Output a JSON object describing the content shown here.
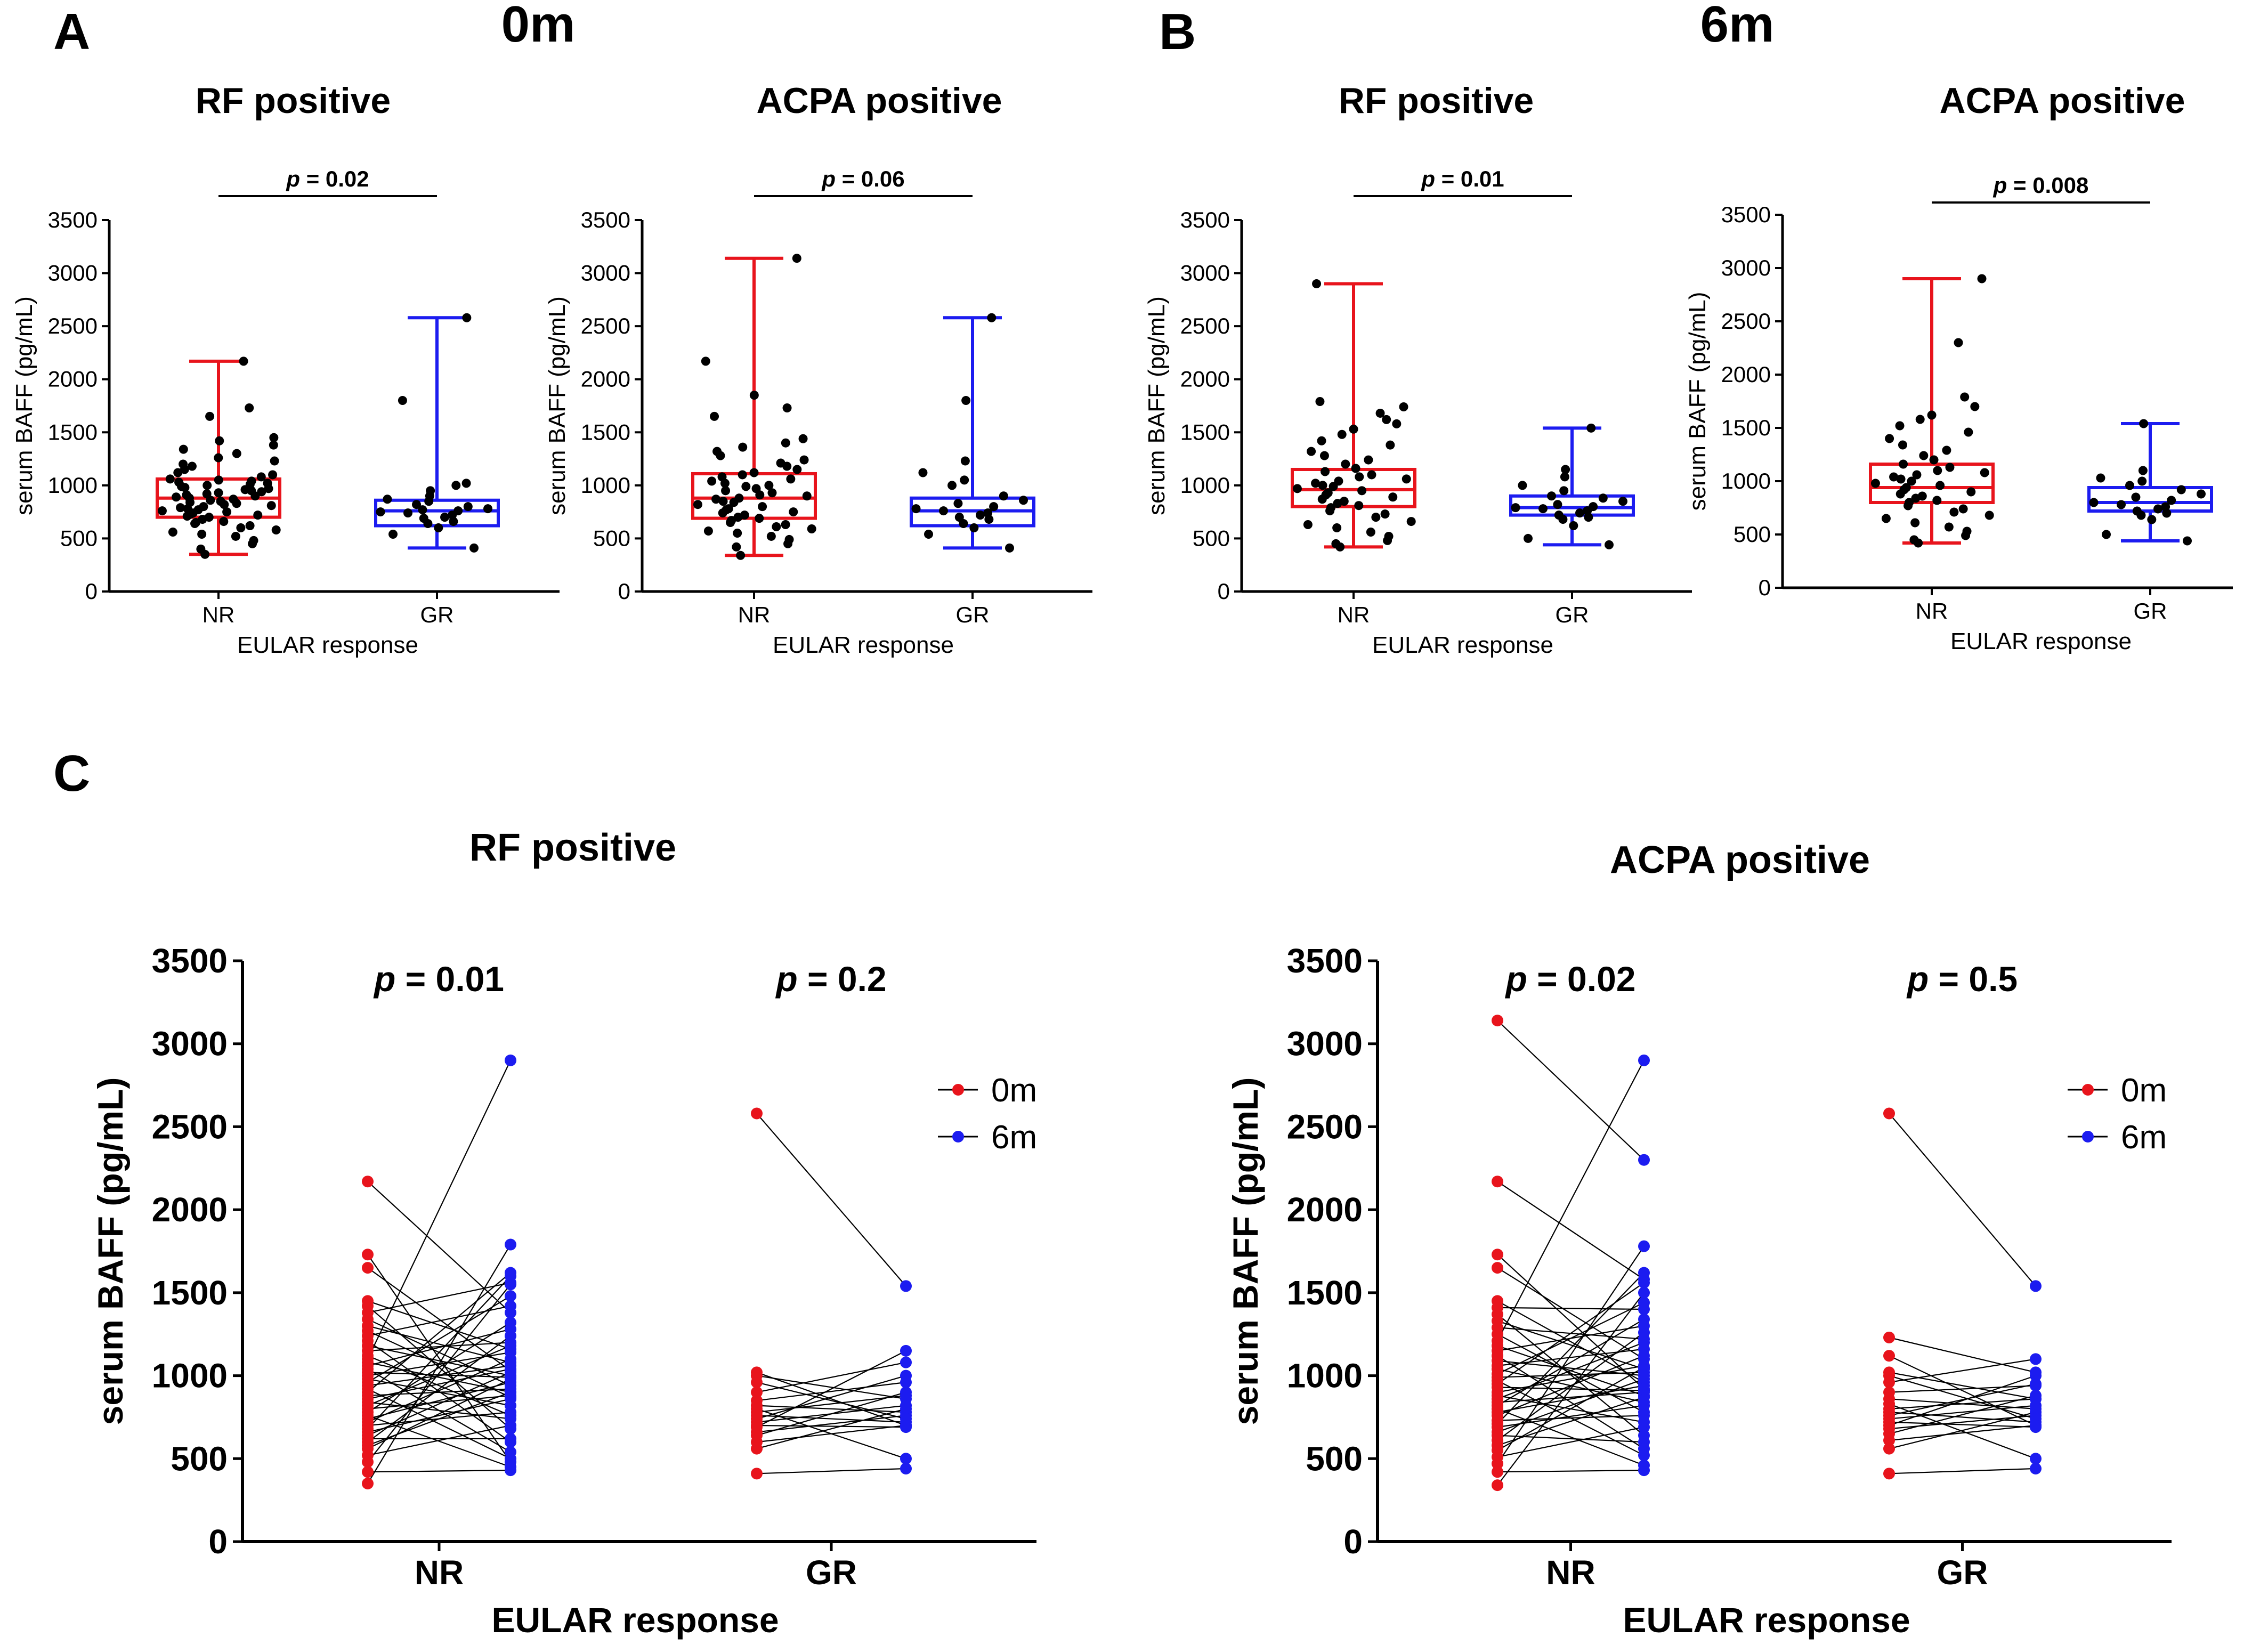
{
  "figure": {
    "panel_letters": [
      "A",
      "B",
      "C"
    ],
    "timepoint_titles": [
      "0m",
      "6m"
    ]
  },
  "chart_data": [
    {
      "id": "A-RF",
      "panel": "A",
      "timepoint": "0m",
      "type": "box",
      "title": "RF positive",
      "xlabel": "EULAR response",
      "ylabel": "serum BAFF (pg/mL)",
      "ylim": [
        0,
        3500
      ],
      "yticks": [
        0,
        500,
        1000,
        1500,
        2000,
        2500,
        3000,
        3500
      ],
      "pvalue": "= 0.02",
      "groups": [
        {
          "name": "NR",
          "color": "#e8141c",
          "min": 350,
          "q1": 700,
          "median": 880,
          "q3": 1060,
          "max": 2170,
          "points": [
            350,
            400,
            450,
            480,
            520,
            540,
            560,
            580,
            600,
            620,
            640,
            650,
            660,
            680,
            700,
            710,
            720,
            730,
            740,
            750,
            760,
            770,
            780,
            790,
            800,
            810,
            820,
            830,
            840,
            850,
            860,
            870,
            880,
            890,
            900,
            910,
            920,
            930,
            940,
            950,
            960,
            970,
            980,
            990,
            1000,
            1010,
            1020,
            1030,
            1040,
            1050,
            1060,
            1080,
            1100,
            1120,
            1150,
            1180,
            1200,
            1230,
            1260,
            1300,
            1340,
            1380,
            1420,
            1450,
            1650,
            1730,
            2170
          ]
        },
        {
          "name": "GR",
          "color": "#1c1cf0",
          "min": 410,
          "q1": 620,
          "median": 760,
          "q3": 860,
          "max": 2580,
          "points": [
            410,
            540,
            600,
            640,
            660,
            690,
            700,
            720,
            740,
            750,
            760,
            770,
            780,
            800,
            820,
            850,
            870,
            900,
            950,
            1000,
            1020,
            1800,
            2580
          ]
        }
      ]
    },
    {
      "id": "A-ACPA",
      "panel": "A",
      "timepoint": "0m",
      "type": "box",
      "title": "ACPA positive",
      "xlabel": "EULAR response",
      "ylabel": "serum BAFF (pg/mL)",
      "ylim": [
        0,
        3500
      ],
      "yticks": [
        0,
        500,
        1000,
        1500,
        2000,
        2500,
        3000,
        3500
      ],
      "pvalue": "= 0.06",
      "groups": [
        {
          "name": "NR",
          "color": "#e8141c",
          "min": 340,
          "q1": 690,
          "median": 880,
          "q3": 1110,
          "max": 3140,
          "points": [
            340,
            420,
            450,
            490,
            520,
            550,
            570,
            590,
            610,
            630,
            650,
            670,
            690,
            700,
            720,
            740,
            750,
            770,
            780,
            800,
            820,
            840,
            850,
            870,
            880,
            900,
            910,
            930,
            950,
            970,
            990,
            1000,
            1020,
            1040,
            1060,
            1080,
            1100,
            1120,
            1150,
            1180,
            1210,
            1240,
            1280,
            1320,
            1360,
            1400,
            1440,
            1650,
            1730,
            1850,
            2170,
            3140
          ]
        },
        {
          "name": "GR",
          "color": "#1c1cf0",
          "min": 410,
          "q1": 620,
          "median": 760,
          "q3": 880,
          "max": 2580,
          "points": [
            410,
            540,
            600,
            640,
            680,
            700,
            720,
            740,
            760,
            780,
            800,
            830,
            860,
            900,
            1000,
            1050,
            1120,
            1230,
            1800,
            2580
          ]
        }
      ]
    },
    {
      "id": "B-RF",
      "panel": "B",
      "timepoint": "6m",
      "type": "box",
      "title": "RF positive",
      "xlabel": "EULAR response",
      "ylabel": "serum BAFF (pg/mL)",
      "ylim": [
        0,
        3500
      ],
      "yticks": [
        0,
        500,
        1000,
        1500,
        2000,
        2500,
        3000,
        3500
      ],
      "pvalue": "= 0.01",
      "groups": [
        {
          "name": "NR",
          "color": "#e8141c",
          "min": 420,
          "q1": 800,
          "median": 960,
          "q3": 1150,
          "max": 2900,
          "points": [
            420,
            450,
            480,
            520,
            560,
            600,
            630,
            660,
            700,
            730,
            760,
            790,
            810,
            830,
            850,
            870,
            890,
            910,
            930,
            950,
            970,
            990,
            1000,
            1020,
            1040,
            1060,
            1080,
            1100,
            1130,
            1160,
            1200,
            1240,
            1280,
            1320,
            1380,
            1420,
            1480,
            1530,
            1580,
            1620,
            1680,
            1740,
            1790,
            2900
          ]
        },
        {
          "name": "GR",
          "color": "#1c1cf0",
          "min": 440,
          "q1": 720,
          "median": 790,
          "q3": 900,
          "max": 1540,
          "points": [
            440,
            500,
            620,
            680,
            700,
            720,
            740,
            760,
            780,
            790,
            800,
            820,
            850,
            880,
            900,
            950,
            1000,
            1080,
            1150,
            1540
          ]
        }
      ]
    },
    {
      "id": "B-ACPA",
      "panel": "B",
      "timepoint": "6m",
      "type": "box",
      "title": "ACPA positive",
      "xlabel": "EULAR response",
      "ylabel": "serum BAFF (pg/mL)",
      "ylim": [
        0,
        3500
      ],
      "yticks": [
        0,
        500,
        1000,
        1500,
        2000,
        2500,
        3000,
        3500
      ],
      "pvalue": "= 0.008",
      "groups": [
        {
          "name": "NR",
          "color": "#e8141c",
          "min": 420,
          "q1": 800,
          "median": 940,
          "q3": 1160,
          "max": 2900,
          "points": [
            420,
            450,
            490,
            530,
            570,
            610,
            650,
            680,
            710,
            740,
            770,
            800,
            820,
            840,
            860,
            880,
            900,
            920,
            940,
            960,
            980,
            1000,
            1020,
            1040,
            1060,
            1080,
            1100,
            1130,
            1160,
            1200,
            1240,
            1290,
            1340,
            1400,
            1460,
            1520,
            1580,
            1620,
            1700,
            1790,
            2300,
            2900
          ]
        },
        {
          "name": "GR",
          "color": "#1c1cf0",
          "min": 440,
          "q1": 720,
          "median": 800,
          "q3": 940,
          "max": 1540,
          "points": [
            440,
            500,
            640,
            680,
            700,
            720,
            740,
            760,
            780,
            800,
            820,
            850,
            880,
            920,
            960,
            1000,
            1030,
            1100,
            1540
          ]
        }
      ]
    },
    {
      "id": "C-RF",
      "panel": "C",
      "type": "paired-line",
      "title": "RF positive",
      "xlabel": "EULAR response",
      "ylabel": "serum BAFF (pg/mL)",
      "ylim": [
        0,
        3500
      ],
      "yticks": [
        0,
        500,
        1000,
        1500,
        2000,
        2500,
        3000,
        3500
      ],
      "categories": [
        "NR",
        "GR"
      ],
      "legend": [
        {
          "label": "0m",
          "color": "#e8141c"
        },
        {
          "label": "6m",
          "color": "#1c1cf0"
        }
      ],
      "groups": [
        {
          "name": "NR",
          "pvalue": "= 0.01",
          "m0": [
            350,
            420,
            480,
            520,
            560,
            580,
            600,
            620,
            640,
            660,
            680,
            700,
            720,
            740,
            760,
            780,
            800,
            820,
            840,
            860,
            880,
            900,
            920,
            940,
            960,
            980,
            1000,
            1020,
            1040,
            1060,
            1080,
            1100,
            1120,
            1150,
            1180,
            1210,
            1240,
            1270,
            1300,
            1340,
            1380,
            1420,
            1450,
            1650,
            1730,
            2170
          ],
          "m6": [
            1790,
            430,
            1550,
            700,
            980,
            900,
            1240,
            620,
            1020,
            860,
            1600,
            780,
            1100,
            960,
            450,
            1320,
            880,
            1180,
            740,
            1040,
            920,
            1620,
            500,
            1060,
            1480,
            820,
            1140,
            990,
            540,
            1280,
            900,
            2900,
            760,
            1200,
            1000,
            600,
            1420,
            870,
            1080,
            940,
            1560,
            680,
            1160,
            1030,
            480,
            1380
          ]
        },
        {
          "name": "GR",
          "pvalue": "= 0.2",
          "m0": [
            410,
            560,
            600,
            640,
            660,
            690,
            700,
            720,
            740,
            760,
            780,
            800,
            820,
            850,
            900,
            960,
            1000,
            1020,
            2580
          ],
          "m6": [
            440,
            800,
            700,
            900,
            760,
            1150,
            690,
            820,
            1000,
            720,
            880,
            500,
            780,
            960,
            1080,
            740,
            860,
            700,
            1540
          ]
        }
      ]
    },
    {
      "id": "C-ACPA",
      "panel": "C",
      "type": "paired-line",
      "title": "ACPA positive",
      "xlabel": "EULAR response",
      "ylabel": "serum BAFF (pg/mL)",
      "ylim": [
        0,
        3500
      ],
      "yticks": [
        0,
        500,
        1000,
        1500,
        2000,
        2500,
        3000,
        3500
      ],
      "categories": [
        "NR",
        "GR"
      ],
      "legend": [
        {
          "label": "0m",
          "color": "#e8141c"
        },
        {
          "label": "6m",
          "color": "#1c1cf0"
        }
      ],
      "groups": [
        {
          "name": "NR",
          "pvalue": "= 0.02",
          "m0": [
            340,
            420,
            470,
            510,
            550,
            580,
            610,
            640,
            660,
            690,
            710,
            730,
            760,
            780,
            800,
            820,
            840,
            860,
            880,
            900,
            930,
            950,
            970,
            990,
            1010,
            1040,
            1060,
            1090,
            1120,
            1150,
            1180,
            1210,
            1250,
            1290,
            1330,
            1370,
            1410,
            1450,
            1650,
            1730,
            2170,
            3140
          ],
          "m6": [
            1500,
            430,
            1780,
            690,
            1050,
            870,
            1260,
            600,
            980,
            820,
            1620,
            760,
            1120,
            940,
            460,
            1340,
            900,
            1200,
            720,
            1060,
            910,
            1560,
            520,
            1020,
            1440,
            840,
            1160,
            1000,
            560,
            1300,
            880,
            2900,
            780,
            1220,
            1040,
            640,
            1400,
            960,
            1100,
            920,
            1580,
            2300
          ]
        },
        {
          "name": "GR",
          "pvalue": "= 0.5",
          "m0": [
            410,
            560,
            610,
            650,
            680,
            700,
            720,
            740,
            760,
            780,
            800,
            830,
            860,
            900,
            960,
            1000,
            1020,
            1120,
            1230,
            2580
          ],
          "m6": [
            440,
            780,
            700,
            880,
            760,
            1000,
            690,
            820,
            950,
            720,
            860,
            500,
            800,
            940,
            1100,
            740,
            860,
            700,
            1020,
            1540
          ]
        }
      ]
    }
  ]
}
